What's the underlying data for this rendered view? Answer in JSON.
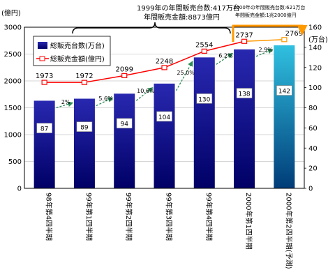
{
  "chart_data": {
    "type": "bar",
    "categories": [
      "98年第4四半期",
      "99年第1四半期",
      "99年第2四半期",
      "99年第3四半期",
      "99年第4四半期",
      "2000年第1四半期",
      "2000年第2四半期(予測)"
    ],
    "left_axis": {
      "unit": "(億円)",
      "min": 0,
      "max": 3000,
      "ticks": [
        0,
        500,
        1000,
        1500,
        2000,
        2500,
        3000
      ]
    },
    "right_axis": {
      "unit": "(万台)",
      "min": 0,
      "max": 160,
      "ticks": [
        0,
        20,
        40,
        60,
        80,
        100,
        120,
        140,
        160
      ]
    },
    "series": [
      {
        "name": "総販売台数(万台)",
        "kind": "bar",
        "axis": "right",
        "values": [
          87,
          89,
          94,
          104,
          130,
          138,
          142
        ],
        "labels": [
          "87",
          "89",
          "94",
          "104",
          "130",
          "138",
          "142"
        ]
      },
      {
        "name": "総販売金額(億円)",
        "kind": "line",
        "axis": "left",
        "values": [
          1973,
          1972,
          2099,
          2248,
          2554,
          2737,
          2769
        ],
        "labels": [
          "1973",
          "1972",
          "2099",
          "2248",
          "2554",
          "2737",
          "2769"
        ]
      }
    ],
    "growth_labels": [
      "2%",
      "5.6%",
      "10.6%",
      "25.0%",
      "6.2%",
      "2.9%"
    ],
    "legend": {
      "placement": "top-left"
    },
    "annotations": {
      "year_1999_units": "1999年の年間販売台数:417万台",
      "year_1999_sales": "年間販売金額:8873億円",
      "year_2000_units": "2000年の年間販売台数:621万台",
      "year_2000_sales": "年間販売金額:1兆2000億円"
    },
    "colors": {
      "bar_top": "#2020a0",
      "bar_bottom": "#000070",
      "forecast_top": "#00a0c0",
      "forecast_bottom": "#004080",
      "line": "#ff0000",
      "forecast_line": "#ff9900",
      "growth_arrow": "#2e8b57",
      "bracket_orange": "#ff9900",
      "plot_bg": "#ffffff"
    }
  }
}
